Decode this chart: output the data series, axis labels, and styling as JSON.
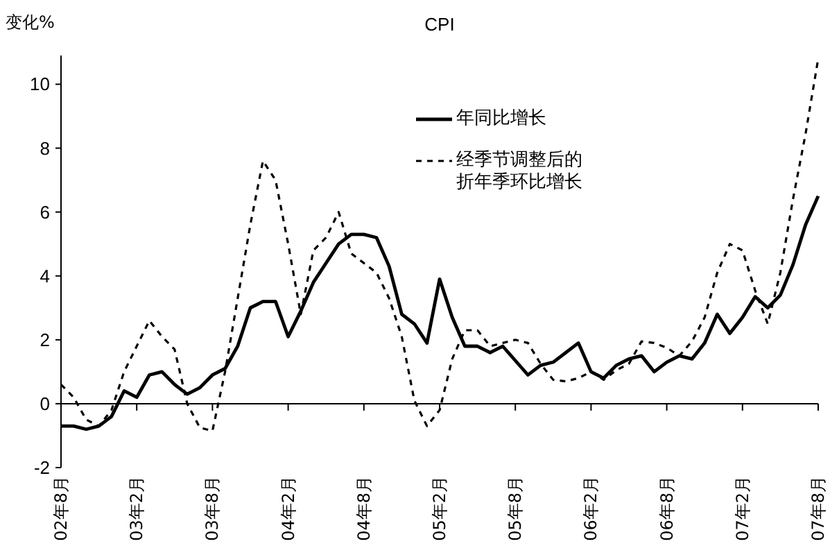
{
  "chart_data": {
    "type": "line",
    "title": "CPI",
    "ylabel": "变化%",
    "categories": [
      "02年8月",
      null,
      null,
      null,
      null,
      null,
      "03年2月",
      null,
      null,
      null,
      null,
      null,
      "03年8月",
      null,
      null,
      null,
      null,
      null,
      "04年2月",
      null,
      null,
      null,
      null,
      null,
      "04年8月",
      null,
      null,
      null,
      null,
      null,
      "05年2月",
      null,
      null,
      null,
      null,
      null,
      "05年8月",
      null,
      null,
      null,
      null,
      null,
      "06年2月",
      null,
      null,
      null,
      null,
      null,
      "06年8月",
      null,
      null,
      null,
      null,
      null,
      "07年2月",
      null,
      null,
      null,
      null,
      null,
      "07年8月"
    ],
    "series": [
      {
        "name": "年同比增长",
        "color": "#000000",
        "line_style": "solid",
        "values": [
          -0.7,
          -0.7,
          -0.8,
          -0.7,
          -0.4,
          0.4,
          0.2,
          0.9,
          1.0,
          0.6,
          0.3,
          0.5,
          0.9,
          1.1,
          1.8,
          3.0,
          3.2,
          3.2,
          2.1,
          2.9,
          3.8,
          4.4,
          5.0,
          5.3,
          5.3,
          5.2,
          4.3,
          2.8,
          2.5,
          1.9,
          3.9,
          2.7,
          1.8,
          1.8,
          1.6,
          1.8,
          1.35,
          0.9,
          1.2,
          1.3,
          1.6,
          1.9,
          1.0,
          0.8,
          1.2,
          1.4,
          1.5,
          1.0,
          1.3,
          1.5,
          1.4,
          1.9,
          2.8,
          2.2,
          2.7,
          3.35,
          3.0,
          3.4,
          4.35,
          5.6,
          6.5
        ]
      },
      {
        "name": "经季节调整后的折年季环比增长",
        "color": "#000000",
        "line_style": "dashed",
        "values": [
          0.6,
          0.2,
          -0.5,
          -0.7,
          -0.2,
          1.0,
          1.8,
          2.6,
          2.1,
          1.7,
          0.0,
          -0.75,
          -0.85,
          1.0,
          3.3,
          5.6,
          7.6,
          7.0,
          5.0,
          2.8,
          4.8,
          5.2,
          6.0,
          4.7,
          4.4,
          4.1,
          3.3,
          2.1,
          0.1,
          -0.7,
          -0.2,
          1.4,
          2.3,
          2.3,
          1.8,
          1.9,
          2.0,
          1.9,
          1.25,
          0.75,
          0.7,
          0.8,
          1.0,
          0.75,
          1.05,
          1.25,
          1.95,
          1.9,
          1.75,
          1.5,
          1.95,
          2.7,
          4.1,
          5.0,
          4.8,
          3.55,
          2.5,
          4.1,
          6.4,
          8.45,
          10.8
        ]
      }
    ],
    "ylim": [
      -2,
      10.9
    ],
    "yticks": [
      -2,
      0,
      2,
      4,
      6,
      8,
      10
    ],
    "legend": "top",
    "marker": "none"
  }
}
